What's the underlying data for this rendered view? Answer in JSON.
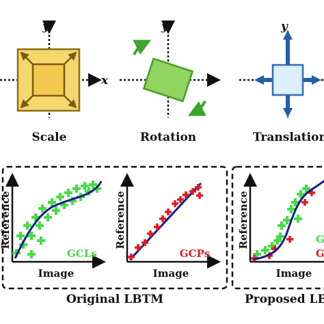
{
  "transforms": {
    "scale_label": "Scale",
    "rotation_label": "Rotation",
    "translation_label": "Translation",
    "axis_x": "x",
    "axis_y": "y"
  },
  "original": {
    "group_label": "Original LBTM",
    "plot1": {
      "xlabel": "Image",
      "ylabel": "Reference",
      "legend": "GCLs"
    },
    "plot2": {
      "xlabel": "Image",
      "ylabel": "Reference",
      "legend": "GCPs"
    }
  },
  "proposed": {
    "group_label": "Proposed LBTM",
    "plot3": {
      "xlabel": "Image",
      "ylabel": "Reference",
      "legend_1": "GCLs",
      "legend_2": "GCPs"
    }
  },
  "colors": {
    "scale_fill": "#f5d76e",
    "scale_stroke": "#8a6d1a",
    "rotation_fill": "#8fd45e",
    "rotation_stroke": "#4a9a2a",
    "translation_fill": "#dcefff",
    "translation_stroke": "#2f6db5",
    "gcl_green": "#44dd44",
    "gcp_red": "#e21b1b",
    "curve_blue": "#1a1a8a"
  }
}
